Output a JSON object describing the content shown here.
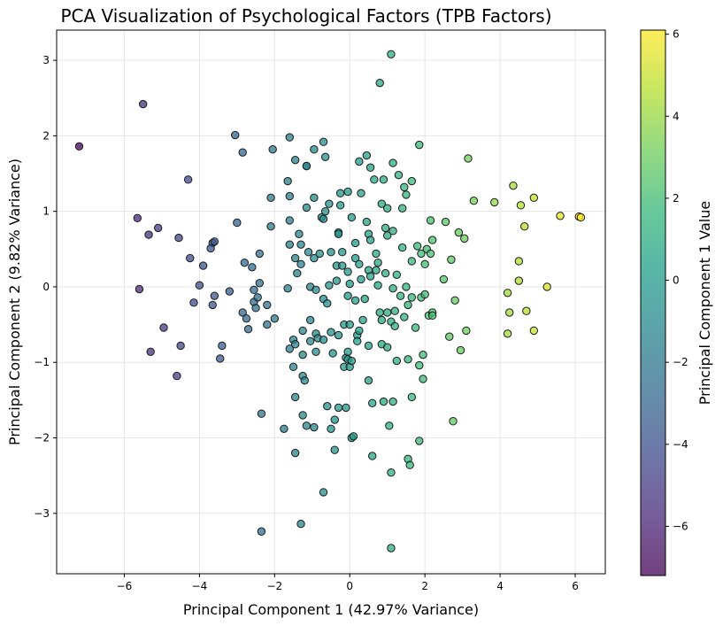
{
  "chart_data": {
    "type": "scatter",
    "title": "PCA Visualization of Psychological Factors (TPB Factors)",
    "xlabel": "Principal Component 1 (42.97% Variance)",
    "ylabel": "Principal Component 2 (9.82% Variance)",
    "xlim": [
      -7.8,
      6.8
    ],
    "ylim": [
      -3.8,
      3.4
    ],
    "xticks": [
      -6,
      -4,
      -2,
      0,
      2,
      4,
      6
    ],
    "yticks": [
      -3,
      -2,
      -1,
      0,
      1,
      2,
      3
    ],
    "grid": true,
    "colorbar": {
      "label": "Principal Component 1 Value",
      "colormap": "viridis",
      "range": [
        -7.2,
        6.1
      ],
      "ticks": [
        -6,
        -4,
        -2,
        0,
        2,
        4,
        6
      ]
    },
    "points": [
      {
        "x": -7.2,
        "y": 1.86
      },
      {
        "x": -5.5,
        "y": 2.42
      },
      {
        "x": -5.65,
        "y": 0.91
      },
      {
        "x": -5.35,
        "y": 0.69
      },
      {
        "x": -5.1,
        "y": 0.78
      },
      {
        "x": -5.6,
        "y": -0.03
      },
      {
        "x": -4.95,
        "y": -0.54
      },
      {
        "x": -5.3,
        "y": -0.86
      },
      {
        "x": -4.6,
        "y": -1.18
      },
      {
        "x": -4.5,
        "y": -0.78
      },
      {
        "x": -4.55,
        "y": 0.65
      },
      {
        "x": -4.3,
        "y": 1.42
      },
      {
        "x": -4.25,
        "y": 0.38
      },
      {
        "x": -4.15,
        "y": -0.21
      },
      {
        "x": -4.0,
        "y": 0.02
      },
      {
        "x": -3.9,
        "y": 0.28
      },
      {
        "x": -3.65,
        "y": 0.58
      },
      {
        "x": -3.6,
        "y": 0.6
      },
      {
        "x": -3.7,
        "y": 0.51
      },
      {
        "x": -3.6,
        "y": -0.12
      },
      {
        "x": -3.65,
        "y": -0.24
      },
      {
        "x": -3.4,
        "y": -0.78
      },
      {
        "x": -3.45,
        "y": -0.95
      },
      {
        "x": -3.2,
        "y": -0.06
      },
      {
        "x": -3.05,
        "y": 2.01
      },
      {
        "x": -2.85,
        "y": 1.78
      },
      {
        "x": -3.0,
        "y": 0.85
      },
      {
        "x": -2.8,
        "y": 0.32
      },
      {
        "x": -2.6,
        "y": 0.26
      },
      {
        "x": -2.85,
        "y": -0.34
      },
      {
        "x": -2.75,
        "y": -0.42
      },
      {
        "x": -2.7,
        "y": -0.56
      },
      {
        "x": -2.55,
        "y": -0.2
      },
      {
        "x": -2.5,
        "y": -0.28
      },
      {
        "x": -2.55,
        "y": -0.04
      },
      {
        "x": -2.4,
        "y": 0.05
      },
      {
        "x": -2.4,
        "y": 0.44
      },
      {
        "x": -2.45,
        "y": -0.14
      },
      {
        "x": -2.35,
        "y": -1.68
      },
      {
        "x": -2.35,
        "y": -3.24
      },
      {
        "x": -2.2,
        "y": -0.24
      },
      {
        "x": -2.2,
        "y": -0.5
      },
      {
        "x": -2.1,
        "y": 0.8
      },
      {
        "x": -2.1,
        "y": 1.18
      },
      {
        "x": -2.05,
        "y": 1.82
      },
      {
        "x": -2.0,
        "y": -0.42
      },
      {
        "x": -1.75,
        "y": -1.88
      },
      {
        "x": -1.6,
        "y": 1.98
      },
      {
        "x": -1.65,
        "y": 1.4
      },
      {
        "x": -1.6,
        "y": 1.2
      },
      {
        "x": -1.6,
        "y": 0.88
      },
      {
        "x": -1.6,
        "y": 0.56
      },
      {
        "x": -1.65,
        "y": -0.02
      },
      {
        "x": -1.6,
        "y": -0.82
      },
      {
        "x": -1.5,
        "y": -0.7
      },
      {
        "x": -1.45,
        "y": 1.68
      },
      {
        "x": -1.45,
        "y": 0.38
      },
      {
        "x": -1.4,
        "y": 0.18
      },
      {
        "x": -1.45,
        "y": -0.76
      },
      {
        "x": -1.5,
        "y": -1.06
      },
      {
        "x": -1.45,
        "y": -1.46
      },
      {
        "x": -1.45,
        "y": -2.2
      },
      {
        "x": -1.3,
        "y": -3.14
      },
      {
        "x": -1.35,
        "y": 0.7
      },
      {
        "x": -1.3,
        "y": 0.56
      },
      {
        "x": -1.3,
        "y": 0.3
      },
      {
        "x": -1.25,
        "y": -0.58
      },
      {
        "x": -1.25,
        "y": -0.9
      },
      {
        "x": -1.25,
        "y": -1.18
      },
      {
        "x": -1.2,
        "y": -1.24
      },
      {
        "x": -1.25,
        "y": -1.7
      },
      {
        "x": -1.15,
        "y": 1.6
      },
      {
        "x": -1.15,
        "y": 1.05
      },
      {
        "x": -1.1,
        "y": 0.46
      },
      {
        "x": -1.05,
        "y": 0.0
      },
      {
        "x": -1.05,
        "y": -0.72
      },
      {
        "x": -1.05,
        "y": -0.44
      },
      {
        "x": -1.15,
        "y": -1.84
      },
      {
        "x": -1.15,
        "y": 1.6
      },
      {
        "x": -0.95,
        "y": 1.82
      },
      {
        "x": -0.95,
        "y": 1.18
      },
      {
        "x": -0.95,
        "y": 0.38
      },
      {
        "x": -0.9,
        "y": -0.04
      },
      {
        "x": -0.9,
        "y": -0.86
      },
      {
        "x": -0.95,
        "y": -1.86
      },
      {
        "x": -0.9,
        "y": -0.62
      },
      {
        "x": -0.85,
        "y": -0.68
      },
      {
        "x": -0.8,
        "y": 0.44
      },
      {
        "x": -0.75,
        "y": 0.92
      },
      {
        "x": -0.7,
        "y": 0.9
      },
      {
        "x": -0.7,
        "y": 1.92
      },
      {
        "x": -0.65,
        "y": 1.72
      },
      {
        "x": -0.65,
        "y": 1.0
      },
      {
        "x": -0.7,
        "y": -0.16
      },
      {
        "x": -0.7,
        "y": -0.7
      },
      {
        "x": -0.7,
        "y": -2.72
      },
      {
        "x": -0.6,
        "y": -0.22
      },
      {
        "x": -0.6,
        "y": -1.58
      },
      {
        "x": -0.55,
        "y": 1.1
      },
      {
        "x": -0.55,
        "y": 0.02
      },
      {
        "x": -0.5,
        "y": 0.46
      },
      {
        "x": -0.5,
        "y": -0.6
      },
      {
        "x": -0.5,
        "y": -1.88
      },
      {
        "x": -0.45,
        "y": -0.88
      },
      {
        "x": -0.4,
        "y": -1.76
      },
      {
        "x": -0.4,
        "y": -2.16
      },
      {
        "x": -0.35,
        "y": 0.28
      },
      {
        "x": -0.35,
        "y": 0.08
      },
      {
        "x": -0.3,
        "y": 0.72
      },
      {
        "x": -0.3,
        "y": 0.7
      },
      {
        "x": -0.3,
        "y": -0.64
      },
      {
        "x": -0.3,
        "y": -1.6
      },
      {
        "x": -0.25,
        "y": 1.24
      },
      {
        "x": -0.25,
        "y": 1.08
      },
      {
        "x": -0.2,
        "y": 0.46
      },
      {
        "x": -0.2,
        "y": 0.28
      },
      {
        "x": -0.15,
        "y": -0.5
      },
      {
        "x": -0.1,
        "y": -0.94
      },
      {
        "x": -0.15,
        "y": -1.06
      },
      {
        "x": -0.1,
        "y": -1.6
      },
      {
        "x": -0.05,
        "y": 1.26
      },
      {
        "x": -0.05,
        "y": 0.2
      },
      {
        "x": -0.05,
        "y": -0.12
      },
      {
        "x": -0.05,
        "y": -0.86
      },
      {
        "x": -0.05,
        "y": -0.96
      },
      {
        "x": 0.0,
        "y": 0.04
      },
      {
        "x": 0.0,
        "y": -0.5
      },
      {
        "x": 0.0,
        "y": -1.06
      },
      {
        "x": 0.05,
        "y": 0.92
      },
      {
        "x": 0.05,
        "y": -0.98
      },
      {
        "x": 0.05,
        "y": -2.0
      },
      {
        "x": 0.1,
        "y": -1.98
      },
      {
        "x": 0.15,
        "y": 0.58
      },
      {
        "x": 0.15,
        "y": 0.38
      },
      {
        "x": 0.15,
        "y": -0.18
      },
      {
        "x": 0.2,
        "y": -0.64
      },
      {
        "x": 0.2,
        "y": -0.72
      },
      {
        "x": 0.25,
        "y": 1.66
      },
      {
        "x": 0.25,
        "y": 0.3
      },
      {
        "x": 0.25,
        "y": -0.58
      },
      {
        "x": 0.3,
        "y": 1.24
      },
      {
        "x": 0.3,
        "y": 0.1
      },
      {
        "x": 0.35,
        "y": -0.44
      },
      {
        "x": 0.4,
        "y": -0.16
      },
      {
        "x": 0.45,
        "y": 1.74
      },
      {
        "x": 0.45,
        "y": 0.86
      },
      {
        "x": 0.5,
        "y": 0.7
      },
      {
        "x": 0.5,
        "y": 0.22
      },
      {
        "x": 0.5,
        "y": -0.78
      },
      {
        "x": 0.5,
        "y": -1.24
      },
      {
        "x": 0.55,
        "y": 1.58
      },
      {
        "x": 0.55,
        "y": 0.62
      },
      {
        "x": 0.55,
        "y": 0.14
      },
      {
        "x": 0.6,
        "y": -1.54
      },
      {
        "x": 0.6,
        "y": -2.24
      },
      {
        "x": 0.65,
        "y": 1.42
      },
      {
        "x": 0.7,
        "y": 0.44
      },
      {
        "x": 0.7,
        "y": 0.22
      },
      {
        "x": 0.75,
        "y": 0.32
      },
      {
        "x": 0.75,
        "y": 0.02
      },
      {
        "x": 0.8,
        "y": 2.7
      },
      {
        "x": 0.8,
        "y": -0.34
      },
      {
        "x": 0.85,
        "y": 1.1
      },
      {
        "x": 0.85,
        "y": -0.44
      },
      {
        "x": 0.85,
        "y": -0.76
      },
      {
        "x": 0.9,
        "y": 1.42
      },
      {
        "x": 0.9,
        "y": -1.52
      },
      {
        "x": 0.95,
        "y": 0.78
      },
      {
        "x": 0.95,
        "y": 0.18
      },
      {
        "x": 1.0,
        "y": 1.04
      },
      {
        "x": 1.0,
        "y": 0.68
      },
      {
        "x": 1.0,
        "y": -0.34
      },
      {
        "x": 1.0,
        "y": -0.8
      },
      {
        "x": 1.05,
        "y": -1.84
      },
      {
        "x": 1.1,
        "y": 3.08
      },
      {
        "x": 1.1,
        "y": -0.46
      },
      {
        "x": 1.1,
        "y": -3.46
      },
      {
        "x": 1.1,
        "y": -2.46
      },
      {
        "x": 1.15,
        "y": 1.64
      },
      {
        "x": 1.15,
        "y": 0.74
      },
      {
        "x": 1.15,
        "y": -0.02
      },
      {
        "x": 1.15,
        "y": -1.52
      },
      {
        "x": 1.2,
        "y": -0.32
      },
      {
        "x": 1.2,
        "y": -0.52
      },
      {
        "x": 1.25,
        "y": 0.16
      },
      {
        "x": 1.25,
        "y": -0.98
      },
      {
        "x": 1.3,
        "y": 1.48
      },
      {
        "x": 1.35,
        "y": -0.12
      },
      {
        "x": 1.4,
        "y": 1.04
      },
      {
        "x": 1.4,
        "y": 0.52
      },
      {
        "x": 1.45,
        "y": 1.32
      },
      {
        "x": 1.45,
        "y": -0.4
      },
      {
        "x": 1.5,
        "y": 1.22
      },
      {
        "x": 1.5,
        "y": 0.0
      },
      {
        "x": 1.55,
        "y": -0.24
      },
      {
        "x": 1.55,
        "y": -0.96
      },
      {
        "x": 1.55,
        "y": -2.28
      },
      {
        "x": 1.6,
        "y": -2.36
      },
      {
        "x": 1.65,
        "y": 1.4
      },
      {
        "x": 1.65,
        "y": 0.34
      },
      {
        "x": 1.65,
        "y": -0.14
      },
      {
        "x": 1.65,
        "y": -1.46
      },
      {
        "x": 1.75,
        "y": -0.54
      },
      {
        "x": 1.8,
        "y": 0.54
      },
      {
        "x": 1.85,
        "y": 1.88
      },
      {
        "x": 1.85,
        "y": -2.04
      },
      {
        "x": 1.85,
        "y": -1.04
      },
      {
        "x": 1.9,
        "y": 0.44
      },
      {
        "x": 1.9,
        "y": -0.14
      },
      {
        "x": 1.95,
        "y": -0.9
      },
      {
        "x": 1.95,
        "y": -1.22
      },
      {
        "x": 2.0,
        "y": -0.1
      },
      {
        "x": 2.0,
        "y": 0.3
      },
      {
        "x": 2.05,
        "y": 0.5
      },
      {
        "x": 2.1,
        "y": -0.38
      },
      {
        "x": 2.15,
        "y": 0.88
      },
      {
        "x": 2.15,
        "y": 0.44
      },
      {
        "x": 2.2,
        "y": 0.62
      },
      {
        "x": 2.2,
        "y": -0.34
      },
      {
        "x": 2.2,
        "y": -0.38
      },
      {
        "x": 2.55,
        "y": 0.86
      },
      {
        "x": 2.5,
        "y": 0.1
      },
      {
        "x": 2.65,
        "y": -0.66
      },
      {
        "x": 2.7,
        "y": 0.36
      },
      {
        "x": 2.75,
        "y": -1.78
      },
      {
        "x": 2.8,
        "y": -0.18
      },
      {
        "x": 2.9,
        "y": 0.72
      },
      {
        "x": 2.95,
        "y": -0.84
      },
      {
        "x": 3.05,
        "y": 0.64
      },
      {
        "x": 3.1,
        "y": -0.58
      },
      {
        "x": 3.15,
        "y": 1.7
      },
      {
        "x": 3.3,
        "y": 1.14
      },
      {
        "x": 3.85,
        "y": 1.12
      },
      {
        "x": 4.2,
        "y": -0.08
      },
      {
        "x": 4.2,
        "y": -0.62
      },
      {
        "x": 4.25,
        "y": -0.34
      },
      {
        "x": 4.35,
        "y": 1.34
      },
      {
        "x": 4.5,
        "y": 0.08
      },
      {
        "x": 4.5,
        "y": 0.34
      },
      {
        "x": 4.55,
        "y": 1.08
      },
      {
        "x": 4.65,
        "y": 0.8
      },
      {
        "x": 4.7,
        "y": -0.32
      },
      {
        "x": 4.9,
        "y": 1.18
      },
      {
        "x": 4.9,
        "y": -0.58
      },
      {
        "x": 5.25,
        "y": -0.0
      },
      {
        "x": 5.6,
        "y": 0.94
      },
      {
        "x": 6.1,
        "y": 0.93
      },
      {
        "x": 6.15,
        "y": 0.92
      }
    ]
  }
}
